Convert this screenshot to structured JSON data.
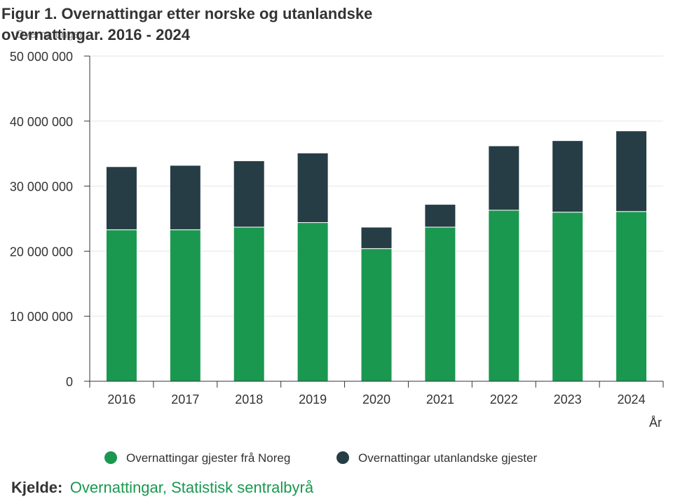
{
  "chart_data": {
    "type": "bar",
    "stacked": true,
    "title_lines": [
      "Figur 1. Overnattingar etter norske og utanlandske",
      "overnattingar. 2016 - 2024"
    ],
    "ylabel": "Overnattingar",
    "xlabel": "År",
    "ylim": [
      0,
      50000000
    ],
    "yticks": [
      0,
      10000000,
      20000000,
      30000000,
      40000000,
      50000000
    ],
    "ytick_labels": [
      "0",
      "10 000 000",
      "20 000 000",
      "30 000 000",
      "40 000 000",
      "50 000 000"
    ],
    "grid": true,
    "categories": [
      "2016",
      "2017",
      "2018",
      "2019",
      "2020",
      "2021",
      "2022",
      "2023",
      "2024"
    ],
    "series": [
      {
        "name": "Overnattingar gjester frå Noreg",
        "color": "#1a9850",
        "values": [
          23300000,
          23300000,
          23700000,
          24400000,
          20400000,
          23700000,
          26300000,
          26000000,
          26100000
        ]
      },
      {
        "name": "Overnattingar utanlandske gjester",
        "color": "#263d45",
        "values": [
          9700000,
          9900000,
          10200000,
          10700000,
          3300000,
          3500000,
          9900000,
          11000000,
          12400000
        ]
      }
    ],
    "legend_position": "bottom-center"
  },
  "source": {
    "label": "Kjelde:",
    "text": "Overnattingar, Statistisk sentralbyrå"
  }
}
